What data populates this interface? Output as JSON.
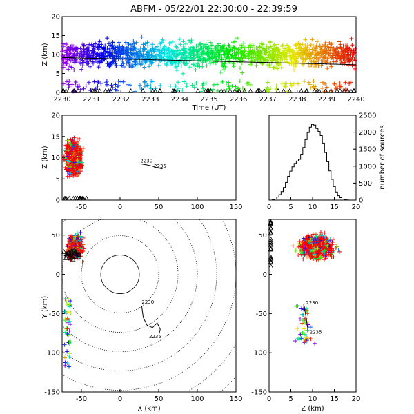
{
  "title": "ABFM - 05/22/01 22:30:00 - 22:39:59",
  "panels": {
    "time_height": {
      "xlabel": "Time (UT)",
      "ylabel": "Z (km)",
      "xticks": [
        "2230",
        "2231",
        "2232",
        "2233",
        "2234",
        "2235",
        "2236",
        "2237",
        "2238",
        "2239",
        "2240"
      ],
      "yticks": [
        "0",
        "5",
        "10",
        "15",
        "20"
      ]
    },
    "xz": {
      "ylabel": "Z (km)",
      "xticks": [
        "-50",
        "0",
        "50",
        "100",
        "150"
      ],
      "yticks": [
        "0",
        "5",
        "10",
        "15",
        "20"
      ],
      "track_labels": [
        "2230",
        "2235"
      ]
    },
    "histogram": {
      "ylabel": "number of sources",
      "xticks": [
        "0",
        "5",
        "10",
        "15",
        "20"
      ],
      "yticks": [
        "0",
        "500",
        "1000",
        "1500",
        "2000",
        "2500"
      ]
    },
    "plan": {
      "xlabel": "X (km)",
      "ylabel": "Y (km)",
      "xticks": [
        "-50",
        "0",
        "50",
        "100",
        "150"
      ],
      "yticks": [
        "-150",
        "-100",
        "-50",
        "0",
        "50"
      ],
      "track_labels": [
        "2230",
        "2235"
      ]
    },
    "zy": {
      "xlabel": "Z (km)",
      "xticks": [
        "0",
        "5",
        "10",
        "15",
        "20"
      ],
      "yticks": [
        "-150",
        "-100",
        "-50",
        "0",
        "50"
      ],
      "track_labels": [
        "2230",
        "2235"
      ]
    }
  },
  "chart_data": [
    {
      "type": "scatter",
      "name_hint": "time-height",
      "x_range": [
        2230,
        2240
      ],
      "y_range": [
        0,
        20
      ],
      "colormap": "rainbow by time",
      "trend_line": {
        "x": [
          2230,
          2240
        ],
        "y": [
          9.2,
          7.3
        ]
      },
      "density_core": {
        "z_min": 5,
        "z_max": 17
      }
    },
    {
      "type": "scatter",
      "name_hint": "x-z",
      "x_range": [
        -75,
        150
      ],
      "y_range": [
        0,
        20
      ],
      "clusters": [
        {
          "x": [
            -72,
            -45
          ],
          "z": [
            3,
            18
          ],
          "color": "#ff0000"
        }
      ],
      "track": {
        "x": [
          28,
          35,
          42,
          48,
          55
        ],
        "z": [
          8.5,
          8.3,
          8.0,
          7.6,
          7.4
        ]
      }
    },
    {
      "type": "bar",
      "name_hint": "altitude histogram",
      "x_range": [
        0,
        20
      ],
      "y_range": [
        0,
        2500
      ],
      "bin_width": 0.5,
      "x": [
        1,
        1.5,
        2,
        2.5,
        3,
        3.5,
        4,
        4.5,
        5,
        5.5,
        6,
        6.5,
        7,
        7.5,
        8,
        8.5,
        9,
        9.5,
        10,
        10.5,
        11,
        11.5,
        12,
        12.5,
        13,
        13.5,
        14,
        14.5,
        15,
        15.5,
        16,
        16.5,
        17,
        17.5,
        18
      ],
      "values": [
        10,
        30,
        90,
        160,
        250,
        370,
        520,
        700,
        850,
        980,
        1080,
        1150,
        1200,
        1350,
        1550,
        1780,
        1990,
        2150,
        2230,
        2210,
        2110,
        2020,
        1900,
        1680,
        1400,
        1130,
        860,
        610,
        400,
        240,
        130,
        70,
        30,
        15,
        5
      ]
    },
    {
      "type": "scatter",
      "name_hint": "plan view",
      "x_range": [
        -75,
        150
      ],
      "y_range": [
        -150,
        70
      ],
      "range_rings_km": [
        25,
        50,
        75,
        100,
        125,
        150,
        175,
        200
      ],
      "track": {
        "x": [
          28,
          30,
          35,
          42,
          48,
          52,
          50
        ],
        "y": [
          -40,
          -55,
          -65,
          -68,
          -62,
          -70,
          -78
        ]
      }
    },
    {
      "type": "scatter",
      "name_hint": "z-y",
      "x_range": [
        0,
        20
      ],
      "y_range": [
        -150,
        70
      ],
      "track": {
        "z": [
          8,
          8.3,
          8.6,
          8.8,
          9.0
        ],
        "y": [
          -40,
          -48,
          -58,
          -66,
          -72
        ]
      }
    }
  ]
}
